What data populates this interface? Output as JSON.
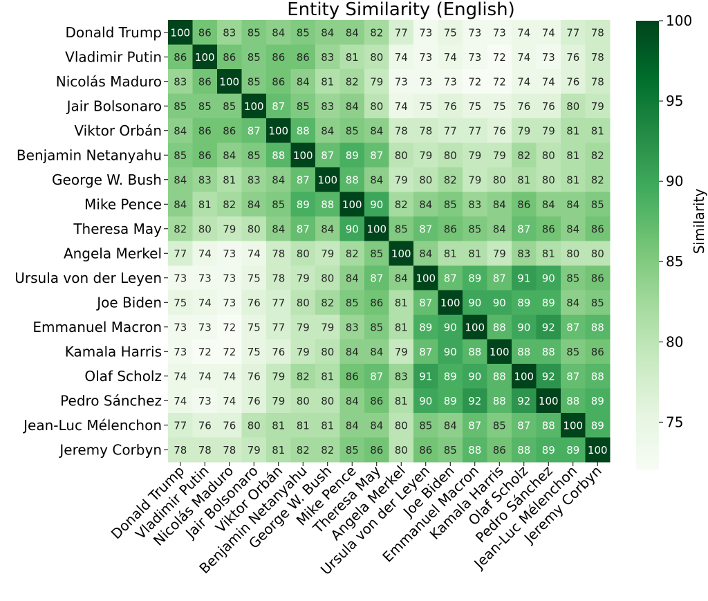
{
  "chart_data": {
    "type": "heatmap",
    "title": "Entity Similarity (English)",
    "colorbar_label": "Similarity",
    "colorbar_ticks": [
      75,
      80,
      85,
      90,
      95,
      100
    ],
    "vmin": 72,
    "vmax": 100,
    "colormap": [
      "#f7fcf5",
      "#e5f5e0",
      "#c7e9c0",
      "#a1d99b",
      "#74c476",
      "#41ab5d",
      "#238b45",
      "#006d2c",
      "#00441b"
    ],
    "labels": [
      "Donald Trump",
      "Vladimir Putin",
      "Nicolás Maduro",
      "Jair Bolsonaro",
      "Viktor Orbán",
      "Benjamin Netanyahu",
      "George W. Bush",
      "Mike Pence",
      "Theresa May",
      "Angela Merkel",
      "Ursula von der Leyen",
      "Joe Biden",
      "Emmanuel Macron",
      "Kamala Harris",
      "Olaf Scholz",
      "Pedro Sánchez",
      "Jean-Luc Mélenchon",
      "Jeremy Corbyn"
    ],
    "matrix": [
      [
        100,
        86,
        83,
        85,
        84,
        85,
        84,
        84,
        82,
        77,
        73,
        75,
        73,
        73,
        74,
        74,
        77,
        78
      ],
      [
        86,
        100,
        86,
        85,
        86,
        86,
        83,
        81,
        80,
        74,
        73,
        74,
        73,
        72,
        74,
        73,
        76,
        78
      ],
      [
        83,
        86,
        100,
        85,
        86,
        84,
        81,
        82,
        79,
        73,
        73,
        73,
        72,
        72,
        74,
        74,
        76,
        78
      ],
      [
        85,
        85,
        85,
        100,
        87,
        85,
        83,
        84,
        80,
        74,
        75,
        76,
        75,
        75,
        76,
        76,
        80,
        79
      ],
      [
        84,
        86,
        86,
        87,
        100,
        88,
        84,
        85,
        84,
        78,
        78,
        77,
        77,
        76,
        79,
        79,
        81,
        81
      ],
      [
        85,
        86,
        84,
        85,
        88,
        100,
        87,
        89,
        87,
        80,
        79,
        80,
        79,
        79,
        82,
        80,
        81,
        82
      ],
      [
        84,
        83,
        81,
        83,
        84,
        87,
        100,
        88,
        84,
        79,
        80,
        82,
        79,
        80,
        81,
        80,
        81,
        82
      ],
      [
        84,
        81,
        82,
        84,
        85,
        89,
        88,
        100,
        90,
        82,
        84,
        85,
        83,
        84,
        86,
        84,
        84,
        85
      ],
      [
        82,
        80,
        79,
        80,
        84,
        87,
        84,
        90,
        100,
        85,
        87,
        86,
        85,
        84,
        87,
        86,
        84,
        86
      ],
      [
        77,
        74,
        73,
        74,
        78,
        80,
        79,
        82,
        85,
        100,
        84,
        81,
        81,
        79,
        83,
        81,
        80,
        80
      ],
      [
        73,
        73,
        73,
        75,
        78,
        79,
        80,
        84,
        87,
        84,
        100,
        87,
        89,
        87,
        91,
        90,
        85,
        86
      ],
      [
        75,
        74,
        73,
        76,
        77,
        80,
        82,
        85,
        86,
        81,
        87,
        100,
        90,
        90,
        89,
        89,
        84,
        85
      ],
      [
        73,
        73,
        72,
        75,
        77,
        79,
        79,
        83,
        85,
        81,
        89,
        90,
        100,
        88,
        90,
        92,
        87,
        88
      ],
      [
        73,
        72,
        72,
        75,
        76,
        79,
        80,
        84,
        84,
        79,
        87,
        90,
        88,
        100,
        88,
        88,
        85,
        86
      ],
      [
        74,
        74,
        74,
        76,
        79,
        82,
        81,
        86,
        87,
        83,
        91,
        89,
        90,
        88,
        100,
        92,
        87,
        88
      ],
      [
        74,
        73,
        74,
        76,
        79,
        80,
        80,
        84,
        86,
        81,
        90,
        89,
        92,
        88,
        92,
        100,
        88,
        89
      ],
      [
        77,
        76,
        76,
        80,
        81,
        81,
        81,
        84,
        84,
        80,
        85,
        84,
        87,
        85,
        87,
        88,
        100,
        89
      ],
      [
        78,
        78,
        78,
        79,
        81,
        82,
        82,
        85,
        86,
        80,
        86,
        85,
        88,
        86,
        88,
        89,
        89,
        100
      ]
    ]
  }
}
